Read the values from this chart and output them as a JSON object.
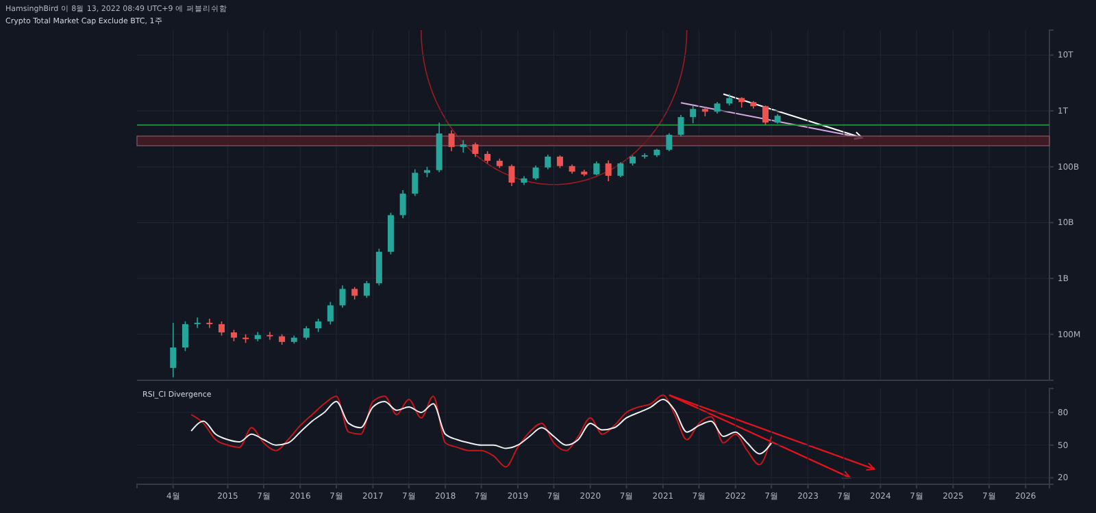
{
  "chart_data": [
    {
      "type": "candlestick",
      "title": "Crypto Total Market Cap Exclude BTC, 1주",
      "subtitle": "HamsinghBird 이 8월 13, 2022 08:49 UTC+9 에 퍼블리쉬함",
      "log": true,
      "grid": true,
      "tick_labels": "y",
      "x": [
        "2014-04",
        "2014-06",
        "2014-08",
        "2014-10",
        "2014-12",
        "2015-02",
        "2015-04",
        "2015-06",
        "2015-08",
        "2015-10",
        "2015-12",
        "2016-02",
        "2016-04",
        "2016-06",
        "2016-08",
        "2016-10",
        "2016-12",
        "2017-02",
        "2017-04",
        "2017-06",
        "2017-08",
        "2017-10",
        "2017-12",
        "2018-02",
        "2018-04",
        "2018-06",
        "2018-08",
        "2018-10",
        "2018-12",
        "2019-02",
        "2019-04",
        "2019-06",
        "2019-08",
        "2019-10",
        "2019-12",
        "2020-02",
        "2020-04",
        "2020-06",
        "2020-08",
        "2020-10",
        "2020-12",
        "2021-02",
        "2021-04",
        "2021-06",
        "2021-08",
        "2021-10",
        "2021-12",
        "2022-02",
        "2022-04",
        "2022-06",
        "2022-08"
      ],
      "ohlc": [
        [
          25000000.0,
          160000000.0,
          17000000.0,
          58000000.0
        ],
        [
          58000000.0,
          170000000.0,
          50000000.0,
          152000000.0
        ],
        [
          152000000.0,
          200000000.0,
          130000000.0,
          161000000.0
        ],
        [
          161000000.0,
          190000000.0,
          130000000.0,
          152000000.0
        ],
        [
          152000000.0,
          170000000.0,
          95000000.0,
          108000000.0
        ],
        [
          108000000.0,
          120000000.0,
          75000000.0,
          87000000.0
        ],
        [
          87000000.0,
          100000000.0,
          70000000.0,
          82000000.0
        ],
        [
          82000000.0,
          110000000.0,
          75000000.0,
          97000000.0
        ],
        [
          97000000.0,
          110000000.0,
          80000000.0,
          92000000.0
        ],
        [
          92000000.0,
          100000000.0,
          65000000.0,
          73000000.0
        ],
        [
          73000000.0,
          95000000.0,
          68000000.0,
          87000000.0
        ],
        [
          87000000.0,
          140000000.0,
          80000000.0,
          128000000.0
        ],
        [
          128000000.0,
          190000000.0,
          110000000.0,
          170000000.0
        ],
        [
          170000000.0,
          380000000.0,
          150000000.0,
          330000000.0
        ],
        [
          330000000.0,
          750000000.0,
          300000000.0,
          650000000.0
        ],
        [
          650000000.0,
          700000000.0,
          420000000.0,
          490000000.0
        ],
        [
          490000000.0,
          900000000.0,
          450000000.0,
          820000000.0
        ],
        [
          820000000.0,
          3400000000.0,
          750000000.0,
          3000000000.0
        ],
        [
          3000000000.0,
          15000000000.0,
          2700000000.0,
          13600000000.0
        ],
        [
          13600000000.0,
          38000000000.0,
          12000000000.0,
          33000000000.0
        ],
        [
          33000000000.0,
          90000000000.0,
          30000000000.0,
          78000000000.0
        ],
        [
          78000000000.0,
          100000000000.0,
          65000000000.0,
          87000000000.0
        ],
        [
          87000000000.0,
          619000000000.0,
          80000000000.0,
          394000000000.0
        ],
        [
          394000000000.0,
          450000000000.0,
          190000000000.0,
          226000000000.0
        ],
        [
          226000000000.0,
          300000000000.0,
          180000000000.0,
          252000000000.0
        ],
        [
          252000000000.0,
          270000000000.0,
          150000000000.0,
          170000000000.0
        ],
        [
          170000000000.0,
          190000000000.0,
          115000000000.0,
          128000000000.0
        ],
        [
          128000000000.0,
          140000000000.0,
          95000000000.0,
          103000000000.0
        ],
        [
          103000000000.0,
          110000000000.0,
          45000000000.0,
          52000000000.0
        ],
        [
          52000000000.0,
          68000000000.0,
          47000000000.0,
          62000000000.0
        ],
        [
          62000000000.0,
          105000000000.0,
          58000000000.0,
          97000000000.0
        ],
        [
          97000000000.0,
          165000000000.0,
          90000000000.0,
          152000000000.0
        ],
        [
          152000000000.0,
          160000000000.0,
          95000000000.0,
          103000000000.0
        ],
        [
          103000000000.0,
          110000000000.0,
          75000000000.0,
          82000000000.0
        ],
        [
          82000000000.0,
          88000000000.0,
          68000000000.0,
          73000000000.0
        ],
        [
          73000000000.0,
          125000000000.0,
          70000000000.0,
          115000000000.0
        ],
        [
          115000000000.0,
          130000000000.0,
          55000000000.0,
          69000000000.0
        ],
        [
          69000000000.0,
          120000000000.0,
          65000000000.0,
          115000000000.0
        ],
        [
          115000000000.0,
          160000000000.0,
          105000000000.0,
          152000000000.0
        ],
        [
          152000000000.0,
          175000000000.0,
          140000000000.0,
          161000000000.0
        ],
        [
          161000000000.0,
          210000000000.0,
          150000000000.0,
          202000000000.0
        ],
        [
          202000000000.0,
          400000000000.0,
          190000000000.0,
          374000000000.0
        ],
        [
          374000000000.0,
          850000000000.0,
          350000000000.0,
          775000000000.0
        ],
        [
          775000000000.0,
          1250000000000.0,
          600000000000.0,
          1085000000000.0
        ],
        [
          1085000000000.0,
          1150000000000.0,
          800000000000.0,
          969000000000.0
        ],
        [
          969000000000.0,
          1450000000000.0,
          900000000000.0,
          1358000000000.0
        ],
        [
          1358000000000.0,
          2000000000000.0,
          1250000000000.0,
          1700000000000.0
        ],
        [
          1700000000000.0,
          1750000000000.0,
          1150000000000.0,
          1437000000000.0
        ],
        [
          1437000000000.0,
          1500000000000.0,
          1100000000000.0,
          1214000000000.0
        ],
        [
          1214000000000.0,
          1250000000000.0,
          560000000000.0,
          619000000000.0
        ],
        [
          619000000000.0,
          880000000000.0,
          590000000000.0,
          819000000000.0
        ]
      ],
      "xlim": [
        "2013-10",
        "2026-05"
      ],
      "xticks": [
        {
          "value": "2014-04",
          "label": null
        },
        {
          "value": "2015-01",
          "label": null
        },
        {
          "value": "2015-07",
          "label": null
        },
        {
          "value": "2016-01",
          "label": null
        },
        {
          "value": "2016-07",
          "label": null
        },
        {
          "value": "2017-01",
          "label": null
        },
        {
          "value": "2017-07",
          "label": null
        },
        {
          "value": "2018-01",
          "label": null
        },
        {
          "value": "2018-07",
          "label": null
        },
        {
          "value": "2019-01",
          "label": null
        },
        {
          "value": "2019-07",
          "label": null
        },
        {
          "value": "2020-01",
          "label": null
        },
        {
          "value": "2020-07",
          "label": null
        },
        {
          "value": "2021-01",
          "label": null
        },
        {
          "value": "2021-07",
          "label": null
        },
        {
          "value": "2022-01",
          "label": null
        },
        {
          "value": "2022-07",
          "label": null
        },
        {
          "value": "2023-01",
          "label": null
        },
        {
          "value": "2023-07",
          "label": null
        },
        {
          "value": "2024-01",
          "label": null
        },
        {
          "value": "2024-07",
          "label": null
        },
        {
          "value": "2025-01",
          "label": null
        },
        {
          "value": "2025-07",
          "label": null
        },
        {
          "value": "2026-01",
          "label": null
        }
      ],
      "ylim": [
        15000000.0,
        28000000000000.0
      ],
      "yticks": [
        {
          "value": 100000000.0,
          "label": "100M"
        },
        {
          "value": 1000000000.0,
          "label": "1B"
        },
        {
          "value": 10000000000.0,
          "label": "10B"
        },
        {
          "value": 100000000000.0,
          "label": "100B"
        },
        {
          "value": 1000000000000.0,
          "label": "1T"
        },
        {
          "value": 10000000000000.0,
          "label": "10T"
        }
      ],
      "ref_lines": [
        {
          "axis": "y",
          "value": 560000000000.0,
          "color": "#1e8c3a"
        }
      ],
      "bands": [
        {
          "axis": "y",
          "from": 238000000000.0,
          "to": 354000000000.0,
          "color": "#4a1c26"
        }
      ]
    },
    {
      "type": "line",
      "title": "RSI_CI Divergence",
      "grid": true,
      "x": [
        "2014-07",
        "2014-09",
        "2014-11",
        "2015-01",
        "2015-03",
        "2015-05",
        "2015-07",
        "2015-09",
        "2015-11",
        "2016-01",
        "2016-03",
        "2016-05",
        "2016-07",
        "2016-09",
        "2016-11",
        "2017-01",
        "2017-03",
        "2017-05",
        "2017-07",
        "2017-09",
        "2017-11",
        "2018-01",
        "2018-03",
        "2018-05",
        "2018-07",
        "2018-09",
        "2018-11",
        "2019-01",
        "2019-03",
        "2019-05",
        "2019-07",
        "2019-09",
        "2019-11",
        "2020-01",
        "2020-03",
        "2020-05",
        "2020-07",
        "2020-09",
        "2020-11",
        "2021-01",
        "2021-03",
        "2021-05",
        "2021-07",
        "2021-09",
        "2021-11",
        "2022-01",
        "2022-03",
        "2022-05",
        "2022-07"
      ],
      "series": [
        {
          "color": "#c2181b",
          "values": [
            78,
            70,
            55,
            50,
            48,
            66,
            52,
            45,
            55,
            68,
            78,
            88,
            95,
            62,
            60,
            90,
            95,
            78,
            92,
            75,
            95,
            52,
            48,
            45,
            45,
            40,
            30,
            48,
            62,
            70,
            52,
            45,
            58,
            75,
            60,
            68,
            80,
            85,
            88,
            96,
            78,
            55,
            70,
            76,
            52,
            60,
            45,
            32,
            58
          ]
        },
        {
          "color": "#f0f0f0",
          "values": [
            63,
            72,
            60,
            55,
            53,
            60,
            55,
            50,
            52,
            62,
            72,
            80,
            90,
            70,
            66,
            85,
            90,
            82,
            85,
            80,
            88,
            60,
            55,
            52,
            50,
            50,
            47,
            50,
            58,
            66,
            58,
            50,
            55,
            70,
            64,
            66,
            75,
            80,
            85,
            92,
            82,
            62,
            68,
            72,
            58,
            62,
            52,
            42,
            52
          ]
        }
      ],
      "xlim": [
        "2013-10",
        "2026-05"
      ],
      "xticks": [
        {
          "value": "2014-04",
          "label": "4월"
        },
        {
          "value": "2015-01",
          "label": "2015"
        },
        {
          "value": "2015-07",
          "label": "7월"
        },
        {
          "value": "2016-01",
          "label": "2016"
        },
        {
          "value": "2016-07",
          "label": "7월"
        },
        {
          "value": "2017-01",
          "label": "2017"
        },
        {
          "value": "2017-07",
          "label": "7월"
        },
        {
          "value": "2018-01",
          "label": "2018"
        },
        {
          "value": "2018-07",
          "label": "7월"
        },
        {
          "value": "2019-01",
          "label": "2019"
        },
        {
          "value": "2019-07",
          "label": "7월"
        },
        {
          "value": "2020-01",
          "label": "2020"
        },
        {
          "value": "2020-07",
          "label": "7월"
        },
        {
          "value": "2021-01",
          "label": "2021"
        },
        {
          "value": "2021-07",
          "label": "7월"
        },
        {
          "value": "2022-01",
          "label": "2022"
        },
        {
          "value": "2022-07",
          "label": "7월"
        },
        {
          "value": "2023-01",
          "label": "2023"
        },
        {
          "value": "2023-07",
          "label": "7월"
        },
        {
          "value": "2024-01",
          "label": "2024"
        },
        {
          "value": "2024-07",
          "label": "7월"
        },
        {
          "value": "2025-01",
          "label": "2025"
        },
        {
          "value": "2025-07",
          "label": "7월"
        },
        {
          "value": "2026-01",
          "label": "2026"
        }
      ],
      "ylim": [
        14,
        102
      ],
      "yticks": [
        20,
        50,
        80
      ]
    }
  ]
}
